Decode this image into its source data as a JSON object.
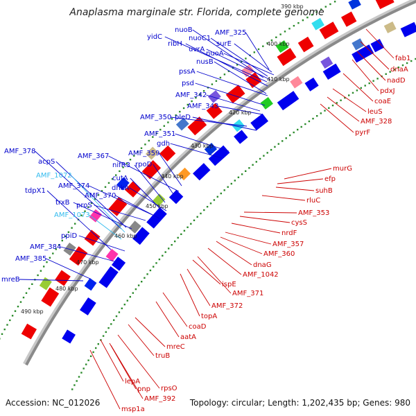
{
  "title": "Anaplasma marginale str. Florida, complete genome",
  "footer": {
    "accession": "Accession: NC_012026",
    "summary": "Topology: circular; Length: 1,202,435 bp; Genes: 980"
  },
  "colors": {
    "forward_label": "#0000cc",
    "trna_label": "#33bbee",
    "reverse_label": "#cc0000",
    "tick_dots": "#2a8a2a",
    "backbone": "#8a8a8a"
  },
  "kbp_ticks": [
    {
      "label": "390 kbp"
    },
    {
      "label": "400 kbp"
    },
    {
      "label": "410 kbp"
    },
    {
      "label": "420 kbp"
    },
    {
      "label": "430 kbp"
    },
    {
      "label": "440 kbp"
    },
    {
      "label": "450 kbp"
    },
    {
      "label": "460 kbp"
    },
    {
      "label": "470 kbp"
    },
    {
      "label": "480 kbp"
    },
    {
      "label": "490 kbp"
    }
  ],
  "forward_labels": [
    {
      "label": "nuoB"
    },
    {
      "label": "yidC"
    },
    {
      "label": "nuoC1"
    },
    {
      "label": "AMF_325"
    },
    {
      "label": "ribH"
    },
    {
      "label": "surE"
    },
    {
      "label": "uvrA"
    },
    {
      "label": "nuoA"
    },
    {
      "label": "nusB"
    },
    {
      "label": "pssA"
    },
    {
      "label": "psd"
    },
    {
      "label": "AMF_342"
    },
    {
      "label": "AMF_343"
    },
    {
      "label": "AMF_350"
    },
    {
      "label": "pleD"
    },
    {
      "label": "AMF_351"
    },
    {
      "label": "gdh"
    },
    {
      "label": "AMF_378"
    },
    {
      "label": "acpS"
    },
    {
      "label": "AMF_367"
    },
    {
      "label": "AMF_359"
    },
    {
      "label": "nifR3"
    },
    {
      "label": "rpoD"
    },
    {
      "label": "AMF_1072",
      "trna": true
    },
    {
      "label": "AMF_374"
    },
    {
      "label": "cutA"
    },
    {
      "label": "tdpX1"
    },
    {
      "label": "dhkA"
    },
    {
      "label": "trxB"
    },
    {
      "label": "AMF_370"
    },
    {
      "label": "proS"
    },
    {
      "label": "AMF_1073",
      "trna": true
    },
    {
      "label": "ppiD"
    },
    {
      "label": "AMF_384"
    },
    {
      "label": "AMF_385"
    },
    {
      "label": "mreB"
    }
  ],
  "reverse_labels": [
    {
      "label": "fab1"
    },
    {
      "label": "dnaA"
    },
    {
      "label": "nadD"
    },
    {
      "label": "pdxJ"
    },
    {
      "label": "coaE"
    },
    {
      "label": "leuS"
    },
    {
      "label": "AMF_328"
    },
    {
      "label": "pyrF"
    },
    {
      "label": "murG"
    },
    {
      "label": "efp"
    },
    {
      "label": "suhB"
    },
    {
      "label": "rluC"
    },
    {
      "label": "AMF_353"
    },
    {
      "label": "cysS"
    },
    {
      "label": "nrdF"
    },
    {
      "label": "AMF_357"
    },
    {
      "label": "AMF_360"
    },
    {
      "label": "dnaG"
    },
    {
      "label": "AMF_1042"
    },
    {
      "label": "AMF_371"
    },
    {
      "label": "ispE"
    },
    {
      "label": "topA"
    },
    {
      "label": "AMF_372"
    },
    {
      "label": "coaD"
    },
    {
      "label": "aatA"
    },
    {
      "label": "mreC"
    },
    {
      "label": "truB"
    },
    {
      "label": "lepA"
    },
    {
      "label": "rpsO"
    },
    {
      "label": "pnp"
    },
    {
      "label": "AMF_392"
    },
    {
      "label": "msp1a"
    }
  ]
}
